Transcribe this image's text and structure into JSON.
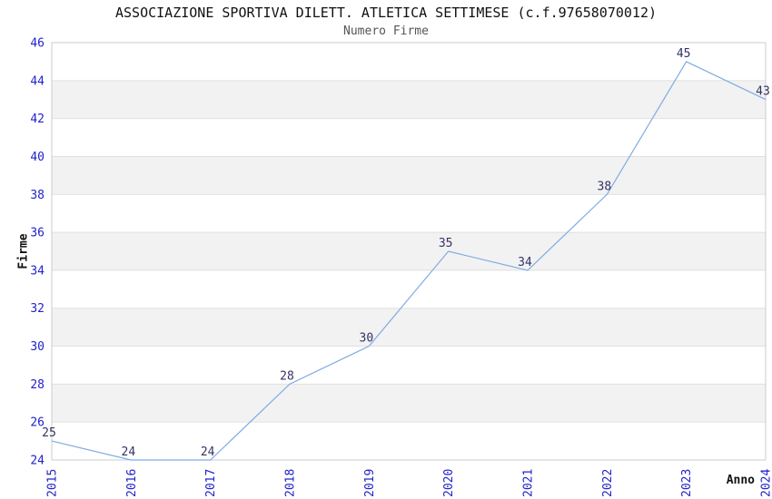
{
  "chart_data": {
    "type": "line",
    "title": "ASSOCIAZIONE SPORTIVA DILETT. ATLETICA SETTIMESE (c.f.97658070012)",
    "subtitle": "Numero Firme",
    "xlabel": "Anno",
    "ylabel": "Firme",
    "categories": [
      "2015",
      "2016",
      "2017",
      "2018",
      "2019",
      "2020",
      "2021",
      "2022",
      "2023",
      "2024"
    ],
    "series": [
      {
        "name": "Numero Firme",
        "values": [
          25,
          24,
          24,
          28,
          30,
          35,
          34,
          38,
          45,
          43
        ]
      }
    ],
    "ylim": [
      24,
      46
    ],
    "ytick_step": 2,
    "grid": true,
    "grid_style": "alternating-horizontal-bands",
    "legend_position": "none",
    "x_tick_rotation_deg": -90,
    "data_labels_visible": true,
    "colors": {
      "line": "#7fabe3",
      "tick_label": "#2222cc",
      "data_label": "#333366",
      "band": "#f2f2f2",
      "gridline": "#e0e0e0",
      "border": "#cccccc",
      "title": "#111111",
      "subtitle": "#555555",
      "axis_label": "#111111",
      "background": "#ffffff"
    }
  }
}
